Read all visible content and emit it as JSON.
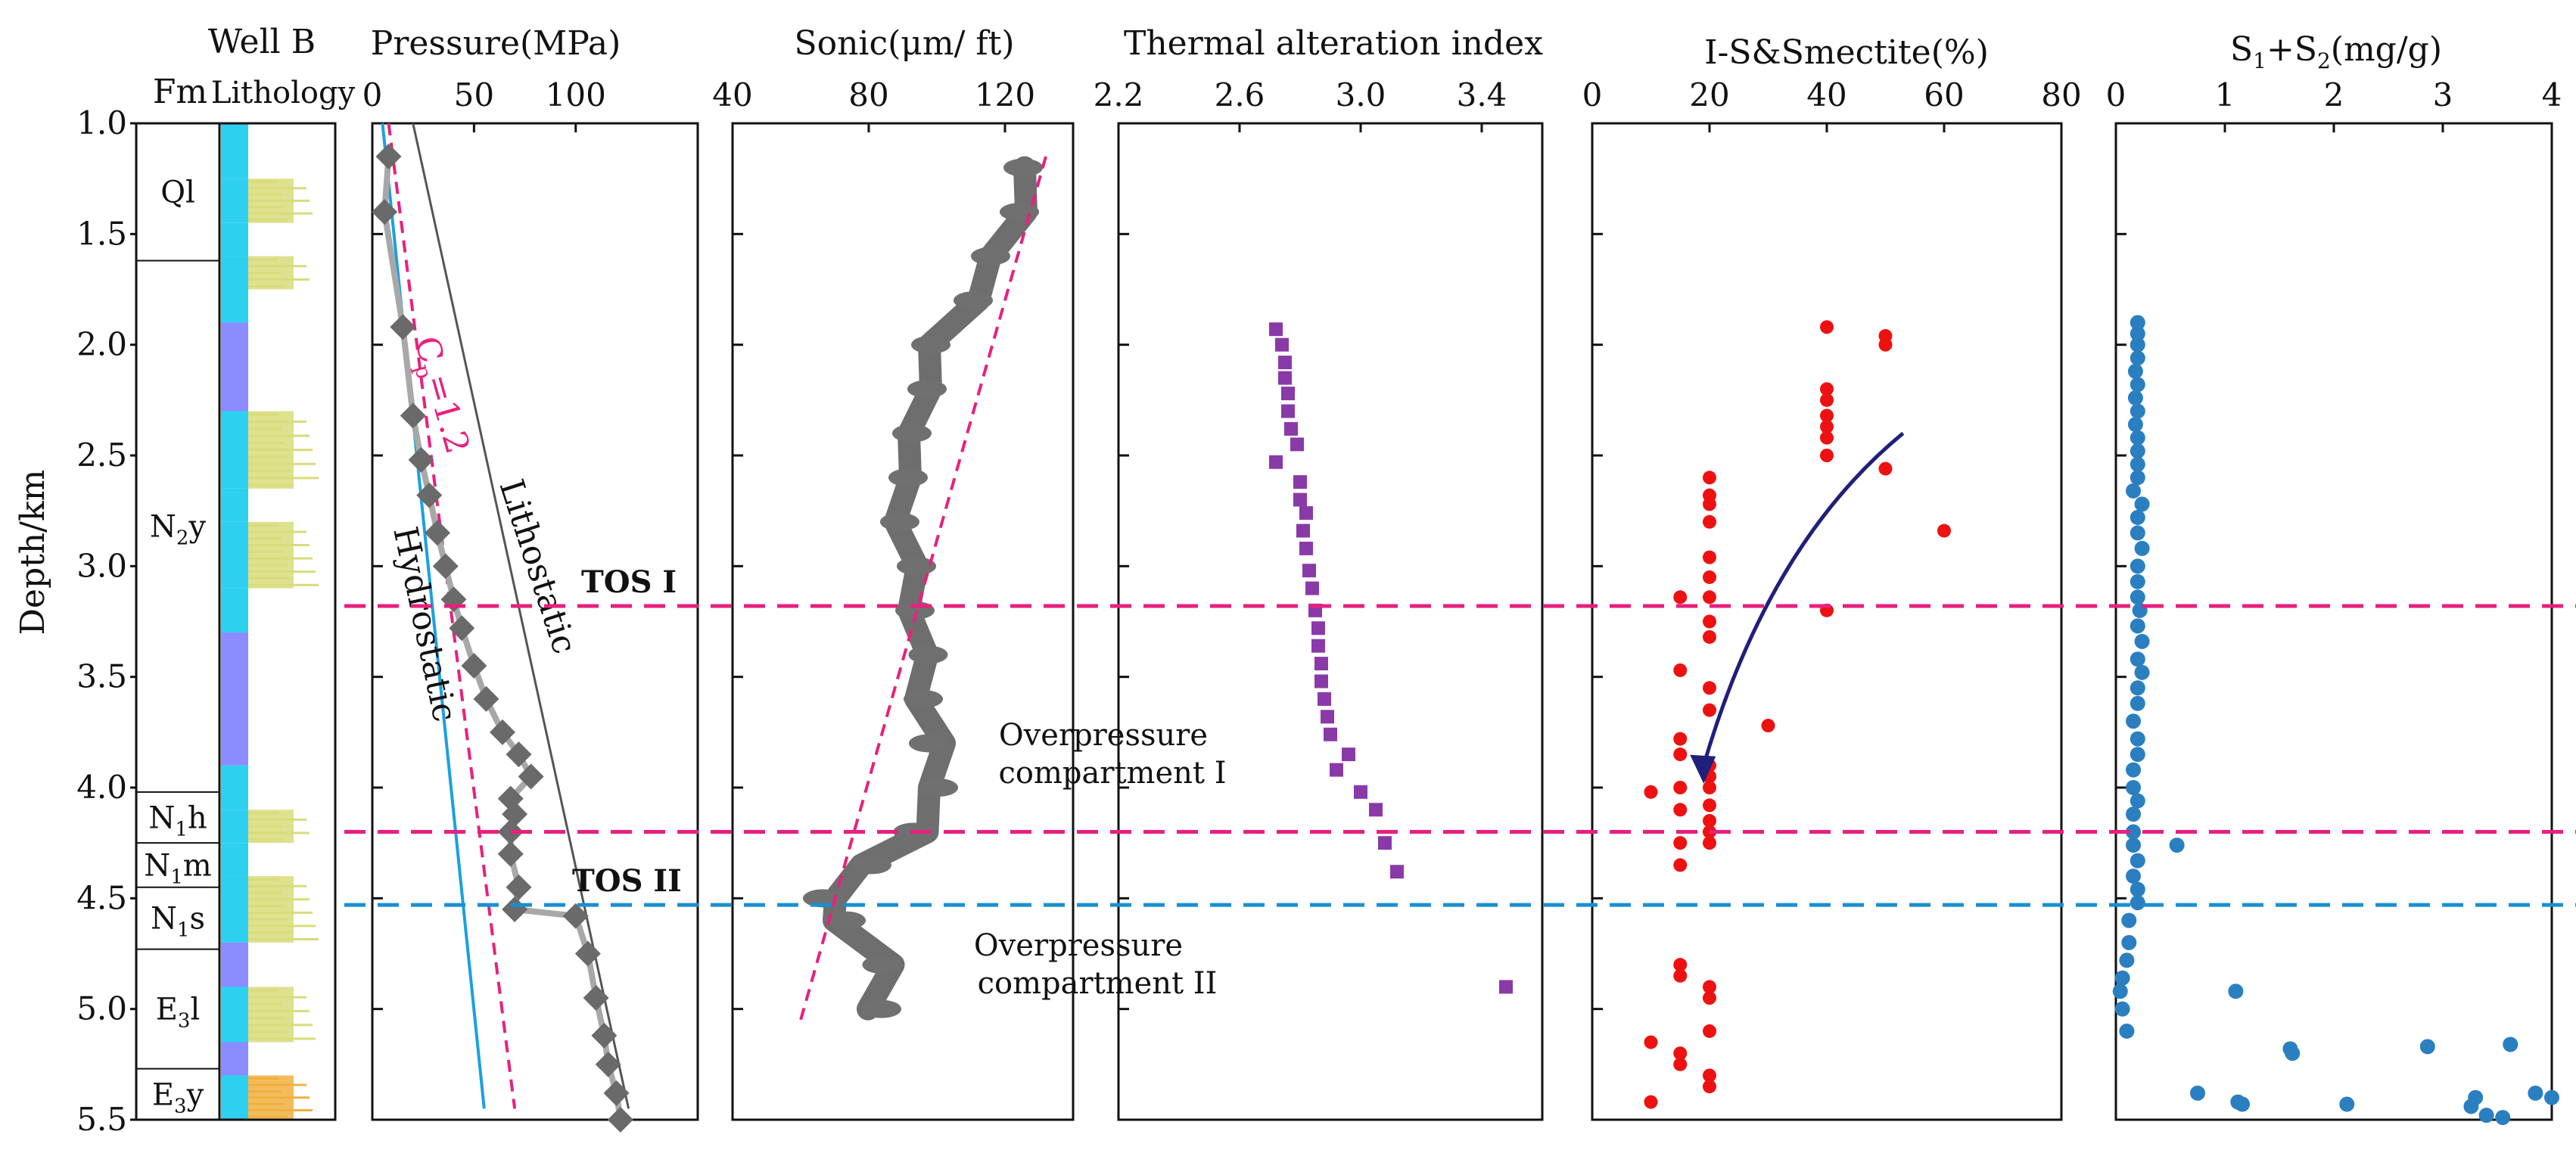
{
  "chart_data": {
    "type": "scatter",
    "y_axis": {
      "label": "Depth/km",
      "range": [
        1.0,
        5.5
      ],
      "ticks": [
        "1.0",
        "1.5",
        "2.0",
        "2.5",
        "3.0",
        "3.5",
        "4.0",
        "4.5",
        "5.0",
        "5.5"
      ],
      "tick_values": [
        1.0,
        1.5,
        2.0,
        2.5,
        3.0,
        3.5,
        4.0,
        4.5,
        5.0,
        5.5
      ]
    },
    "reference_lines": [
      {
        "depth": 3.18,
        "color": "#e8207e",
        "label": "TOS I"
      },
      {
        "depth": 4.2,
        "color": "#e8207e",
        "label": ""
      },
      {
        "depth": 4.53,
        "color": "#1a8fd0",
        "label": "TOS II"
      }
    ],
    "annotations": {
      "overpressure_1": [
        "Overpressure",
        "compartment I"
      ],
      "overpressure_2": [
        "Overpressure",
        "compartment II"
      ]
    },
    "well": {
      "title": "Well B",
      "fm_label": "Fm",
      "lith_label": "Lithology",
      "formations": [
        {
          "name": "Ql",
          "main": "Ql",
          "sub": "",
          "suffix": "",
          "top": 1.0,
          "bottom": 1.62
        },
        {
          "name": "N2y",
          "main": "N",
          "sub": "2",
          "suffix": "y",
          "top": 1.62,
          "bottom": 4.02
        },
        {
          "name": "N1h",
          "main": "N",
          "sub": "1",
          "suffix": "h",
          "top": 4.02,
          "bottom": 4.25
        },
        {
          "name": "N1m",
          "main": "N",
          "sub": "1",
          "suffix": "m",
          "top": 4.25,
          "bottom": 4.45
        },
        {
          "name": "N1s",
          "main": "N",
          "sub": "1",
          "suffix": "s",
          "top": 4.45,
          "bottom": 4.73
        },
        {
          "name": "E3l",
          "main": "E",
          "sub": "3",
          "suffix": "l",
          "top": 4.73,
          "bottom": 5.27
        },
        {
          "name": "E3y",
          "main": "E",
          "sub": "3",
          "suffix": "y",
          "top": 5.27,
          "bottom": 5.5
        }
      ],
      "lithology_colors": {
        "cyan": "#2ed0f0",
        "blue": "#8a8cff",
        "yellow": "#d8dc7a",
        "orange": "#f0b040"
      },
      "lithology_layers": [
        {
          "top": 1.0,
          "bottom": 1.25,
          "type": "cyan"
        },
        {
          "top": 1.25,
          "bottom": 1.45,
          "type": "yellow"
        },
        {
          "top": 1.45,
          "bottom": 1.6,
          "type": "cyan"
        },
        {
          "top": 1.6,
          "bottom": 1.75,
          "type": "yellow"
        },
        {
          "top": 1.75,
          "bottom": 1.9,
          "type": "cyan"
        },
        {
          "top": 1.9,
          "bottom": 2.3,
          "type": "blue"
        },
        {
          "top": 2.3,
          "bottom": 2.65,
          "type": "yellow"
        },
        {
          "top": 2.65,
          "bottom": 2.8,
          "type": "cyan"
        },
        {
          "top": 2.8,
          "bottom": 3.1,
          "type": "yellow"
        },
        {
          "top": 3.1,
          "bottom": 3.3,
          "type": "cyan"
        },
        {
          "top": 3.3,
          "bottom": 3.9,
          "type": "blue"
        },
        {
          "top": 3.9,
          "bottom": 4.1,
          "type": "cyan"
        },
        {
          "top": 4.1,
          "bottom": 4.25,
          "type": "yellow"
        },
        {
          "top": 4.25,
          "bottom": 4.4,
          "type": "cyan"
        },
        {
          "top": 4.4,
          "bottom": 4.7,
          "type": "yellow"
        },
        {
          "top": 4.7,
          "bottom": 4.9,
          "type": "blue"
        },
        {
          "top": 4.9,
          "bottom": 5.15,
          "type": "yellow"
        },
        {
          "top": 5.15,
          "bottom": 5.3,
          "type": "blue"
        },
        {
          "top": 5.3,
          "bottom": 5.5,
          "type": "orange"
        }
      ]
    },
    "pressure": {
      "title": "Pressure(MPa)",
      "xlim": [
        0,
        160
      ],
      "ticks": [
        0,
        50,
        100
      ],
      "series": [
        {
          "name": "measured",
          "points": [
            [
              8,
              1.15
            ],
            [
              6,
              1.4
            ],
            [
              15,
              1.92
            ],
            [
              20,
              2.32
            ],
            [
              24,
              2.52
            ],
            [
              28,
              2.68
            ],
            [
              32,
              2.85
            ],
            [
              36,
              3.0
            ],
            [
              40,
              3.15
            ],
            [
              44,
              3.28
            ],
            [
              50,
              3.45
            ],
            [
              56,
              3.6
            ],
            [
              64,
              3.75
            ],
            [
              72,
              3.85
            ],
            [
              78,
              3.95
            ],
            [
              68,
              4.05
            ],
            [
              70,
              4.12
            ],
            [
              68,
              4.2
            ],
            [
              68,
              4.3
            ],
            [
              72,
              4.45
            ],
            [
              70,
              4.55
            ],
            [
              100,
              4.58
            ],
            [
              106,
              4.75
            ],
            [
              110,
              4.95
            ],
            [
              114,
              5.12
            ],
            [
              116,
              5.25
            ],
            [
              120,
              5.38
            ],
            [
              122,
              5.5
            ]
          ]
        }
      ],
      "hydrostatic": {
        "label": "Hydrostatic",
        "x": [
          5,
          55
        ],
        "depth": [
          1.0,
          5.45
        ]
      },
      "lithostatic": {
        "label": "Lithostatic",
        "x": [
          20,
          126
        ],
        "depth": [
          1.0,
          5.45
        ]
      },
      "cp": {
        "label": "Cp=1.2",
        "label_main": "C",
        "label_sub": "p",
        "label_rest": "=1.2",
        "x": [
          8,
          70
        ],
        "depth": [
          1.0,
          5.45
        ]
      }
    },
    "sonic": {
      "title": "Sonic(μm/ ft)",
      "xlim": [
        40,
        140
      ],
      "ticks": [
        40,
        80,
        120
      ],
      "profile": [
        [
          128,
          1.2
        ],
        [
          124,
          1.4
        ],
        [
          118,
          1.6
        ],
        [
          110,
          1.8
        ],
        [
          100,
          2.0
        ],
        [
          96,
          2.2
        ],
        [
          94,
          2.4
        ],
        [
          90,
          2.6
        ],
        [
          90,
          2.8
        ],
        [
          92,
          3.0
        ],
        [
          94,
          3.2
        ],
        [
          95,
          3.4
        ],
        [
          96,
          3.6
        ],
        [
          100,
          3.8
        ],
        [
          100,
          4.0
        ],
        [
          95,
          4.2
        ],
        [
          80,
          4.35
        ],
        [
          68,
          4.5
        ],
        [
          72,
          4.6
        ],
        [
          85,
          4.8
        ],
        [
          82,
          5.0
        ]
      ],
      "trend": {
        "x": [
          132,
          60
        ],
        "depth": [
          1.15,
          5.05
        ]
      }
    },
    "tai": {
      "title": "Thermal alteration index",
      "xlim": [
        2.2,
        3.6
      ],
      "ticks": [
        2.2,
        2.6,
        3.0,
        3.4
      ],
      "points": [
        [
          2.72,
          1.93
        ],
        [
          2.74,
          2.0
        ],
        [
          2.75,
          2.08
        ],
        [
          2.75,
          2.15
        ],
        [
          2.76,
          2.22
        ],
        [
          2.76,
          2.3
        ],
        [
          2.77,
          2.38
        ],
        [
          2.79,
          2.45
        ],
        [
          2.72,
          2.53
        ],
        [
          2.8,
          2.62
        ],
        [
          2.8,
          2.7
        ],
        [
          2.82,
          2.76
        ],
        [
          2.81,
          2.84
        ],
        [
          2.82,
          2.92
        ],
        [
          2.83,
          3.02
        ],
        [
          2.84,
          3.1
        ],
        [
          2.85,
          3.2
        ],
        [
          2.86,
          3.28
        ],
        [
          2.86,
          3.36
        ],
        [
          2.87,
          3.44
        ],
        [
          2.87,
          3.52
        ],
        [
          2.88,
          3.6
        ],
        [
          2.89,
          3.68
        ],
        [
          2.9,
          3.76
        ],
        [
          2.96,
          3.85
        ],
        [
          2.92,
          3.92
        ],
        [
          3.0,
          4.02
        ],
        [
          3.05,
          4.1
        ],
        [
          3.08,
          4.25
        ],
        [
          3.12,
          4.38
        ],
        [
          3.48,
          4.9
        ]
      ]
    },
    "is": {
      "title": "I-S&Smectite(%)",
      "xlim": [
        0,
        80
      ],
      "ticks": [
        0,
        20,
        40,
        60,
        80
      ],
      "points": [
        [
          40,
          1.92
        ],
        [
          50,
          1.96
        ],
        [
          50,
          2.0
        ],
        [
          40,
          2.2
        ],
        [
          40,
          2.25
        ],
        [
          40,
          2.32
        ],
        [
          40,
          2.37
        ],
        [
          40,
          2.42
        ],
        [
          40,
          2.5
        ],
        [
          50,
          2.56
        ],
        [
          20,
          2.6
        ],
        [
          20,
          2.68
        ],
        [
          20,
          2.72
        ],
        [
          20,
          2.8
        ],
        [
          60,
          2.84
        ],
        [
          20,
          2.96
        ],
        [
          20,
          3.05
        ],
        [
          15,
          3.14
        ],
        [
          20,
          3.14
        ],
        [
          40,
          3.2
        ],
        [
          20,
          3.25
        ],
        [
          20,
          3.32
        ],
        [
          15,
          3.47
        ],
        [
          20,
          3.55
        ],
        [
          20,
          3.65
        ],
        [
          30,
          3.72
        ],
        [
          15,
          3.78
        ],
        [
          15,
          3.85
        ],
        [
          20,
          3.9
        ],
        [
          20,
          3.95
        ],
        [
          15,
          4.0
        ],
        [
          20,
          4.0
        ],
        [
          10,
          4.02
        ],
        [
          20,
          4.08
        ],
        [
          15,
          4.1
        ],
        [
          20,
          4.15
        ],
        [
          20,
          4.2
        ],
        [
          15,
          4.25
        ],
        [
          20,
          4.25
        ],
        [
          15,
          4.35
        ],
        [
          15,
          4.8
        ],
        [
          15,
          4.85
        ],
        [
          20,
          4.9
        ],
        [
          20,
          4.95
        ],
        [
          10,
          5.15
        ],
        [
          15,
          5.2
        ],
        [
          15,
          5.25
        ],
        [
          20,
          5.1
        ],
        [
          20,
          5.3
        ],
        [
          20,
          5.35
        ],
        [
          10,
          5.42
        ]
      ],
      "arrow": {
        "from": [
          53,
          2.4
        ],
        "ctrl": [
          30,
          2.9
        ],
        "to": [
          19,
          3.9
        ],
        "color": "#20207a"
      }
    },
    "s1s2": {
      "title": "S1+S2(mg/g)",
      "title_parts": [
        "S",
        "1",
        "+S",
        "2",
        "(mg/g)"
      ],
      "xlim": [
        0,
        4
      ],
      "ticks": [
        0,
        1,
        2,
        3,
        4
      ],
      "points": [
        [
          0.2,
          1.9
        ],
        [
          0.2,
          1.95
        ],
        [
          0.2,
          2.0
        ],
        [
          0.2,
          2.06
        ],
        [
          0.18,
          2.12
        ],
        [
          0.2,
          2.18
        ],
        [
          0.18,
          2.24
        ],
        [
          0.2,
          2.3
        ],
        [
          0.18,
          2.36
        ],
        [
          0.2,
          2.42
        ],
        [
          0.2,
          2.48
        ],
        [
          0.2,
          2.54
        ],
        [
          0.2,
          2.6
        ],
        [
          0.16,
          2.66
        ],
        [
          0.24,
          2.72
        ],
        [
          0.2,
          2.78
        ],
        [
          0.2,
          2.85
        ],
        [
          0.24,
          2.92
        ],
        [
          0.2,
          3.0
        ],
        [
          0.2,
          3.07
        ],
        [
          0.2,
          3.14
        ],
        [
          0.22,
          3.2
        ],
        [
          0.2,
          3.27
        ],
        [
          0.24,
          3.34
        ],
        [
          0.2,
          3.42
        ],
        [
          0.24,
          3.48
        ],
        [
          0.2,
          3.55
        ],
        [
          0.2,
          3.62
        ],
        [
          0.16,
          3.7
        ],
        [
          0.2,
          3.78
        ],
        [
          0.2,
          3.85
        ],
        [
          0.16,
          3.92
        ],
        [
          0.16,
          4.0
        ],
        [
          0.2,
          4.06
        ],
        [
          0.16,
          4.12
        ],
        [
          0.16,
          4.2
        ],
        [
          0.16,
          4.26
        ],
        [
          0.56,
          4.26
        ],
        [
          0.2,
          4.33
        ],
        [
          0.16,
          4.4
        ],
        [
          0.2,
          4.46
        ],
        [
          0.2,
          4.52
        ],
        [
          0.12,
          4.6
        ],
        [
          0.12,
          4.7
        ],
        [
          0.1,
          4.78
        ],
        [
          0.06,
          4.86
        ],
        [
          0.04,
          4.92
        ],
        [
          0.06,
          5.0
        ],
        [
          0.1,
          5.1
        ],
        [
          1.1,
          4.92
        ],
        [
          1.6,
          5.18
        ],
        [
          1.62,
          5.2
        ],
        [
          2.86,
          5.17
        ],
        [
          3.62,
          5.16
        ],
        [
          0.75,
          5.38
        ],
        [
          1.12,
          5.42
        ],
        [
          1.16,
          5.43
        ],
        [
          2.12,
          5.43
        ],
        [
          3.3,
          5.4
        ],
        [
          3.26,
          5.44
        ],
        [
          3.4,
          5.48
        ],
        [
          3.55,
          5.49
        ],
        [
          3.85,
          5.38
        ],
        [
          4.0,
          5.4
        ]
      ]
    }
  }
}
